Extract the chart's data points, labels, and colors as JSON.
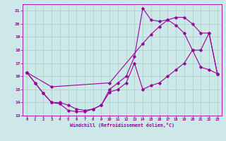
{
  "xlabel": "Windchill (Refroidissement éolien,°C)",
  "bg_color": "#cce8e8",
  "line_color": "#990099",
  "grid_color": "#aacccc",
  "xlim": [
    -0.5,
    23.5
  ],
  "ylim": [
    13,
    21.5
  ],
  "xticks": [
    0,
    1,
    2,
    3,
    4,
    5,
    6,
    7,
    8,
    9,
    10,
    11,
    12,
    13,
    14,
    15,
    16,
    17,
    18,
    19,
    20,
    21,
    22,
    23
  ],
  "yticks": [
    13,
    14,
    15,
    16,
    17,
    18,
    19,
    20,
    21
  ],
  "line1_x": [
    0,
    1,
    2,
    3,
    4,
    5,
    6,
    7,
    8,
    9,
    10,
    11,
    12,
    13,
    14,
    15,
    16,
    17,
    18,
    19,
    20,
    21,
    22,
    23
  ],
  "line1_y": [
    16.3,
    15.5,
    14.7,
    14.0,
    13.9,
    13.4,
    13.3,
    13.3,
    13.5,
    13.8,
    14.8,
    15.0,
    15.5,
    17.0,
    15.0,
    15.3,
    15.5,
    16.0,
    16.5,
    17.0,
    18.0,
    18.0,
    19.3,
    16.2
  ],
  "line2_x": [
    0,
    1,
    2,
    3,
    4,
    5,
    6,
    7,
    8,
    9,
    10,
    11,
    12,
    13,
    14,
    15,
    16,
    17,
    18,
    19,
    20,
    21,
    22,
    23
  ],
  "line2_y": [
    16.3,
    15.5,
    14.7,
    14.0,
    14.0,
    13.8,
    13.5,
    13.4,
    13.5,
    13.8,
    15.0,
    15.5,
    16.0,
    17.5,
    21.2,
    20.3,
    20.2,
    20.3,
    19.9,
    19.3,
    18.0,
    16.7,
    16.5,
    16.2
  ],
  "line3_x": [
    0,
    3,
    10,
    14,
    15,
    16,
    17,
    18,
    19,
    20,
    21,
    22,
    23
  ],
  "line3_y": [
    16.3,
    15.2,
    15.5,
    18.5,
    19.2,
    19.8,
    20.3,
    20.5,
    20.5,
    20.0,
    19.3,
    19.3,
    16.2
  ]
}
